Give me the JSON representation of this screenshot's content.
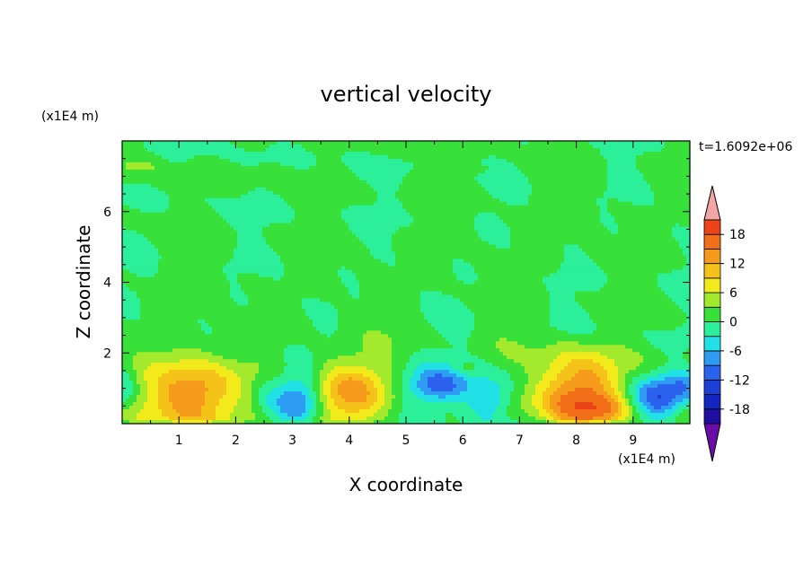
{
  "chart_data": {
    "type": "heatmap",
    "title": "vertical velocity",
    "xlabel": "X coordinate",
    "ylabel": "Z coordinate",
    "x_unit": "(x1E4 m)",
    "y_unit": "(x1E4 m)",
    "time_label": "t=1.6092e+06",
    "xlim": [
      0,
      10
    ],
    "ylim": [
      0,
      8
    ],
    "x_ticks": [
      "1",
      "2",
      "3",
      "4",
      "5",
      "6",
      "7",
      "8",
      "9"
    ],
    "y_ticks": [
      "2",
      "4",
      "6"
    ],
    "colorbar": {
      "levels": [
        -21,
        -18,
        -15,
        -12,
        -9,
        -6,
        -3,
        0,
        3,
        6,
        9,
        12,
        15,
        18,
        21
      ],
      "tick_labels": [
        "18",
        "12",
        "6",
        "0",
        "-6",
        "-12",
        "-18"
      ],
      "colors": [
        "#6a0da8",
        "#1e0fa0",
        "#1426c0",
        "#1e3ed8",
        "#2a62ee",
        "#2e9cf2",
        "#21e0e6",
        "#2cef9a",
        "#38e03a",
        "#a4ea2c",
        "#f2ea1a",
        "#f5c21a",
        "#f59a1a",
        "#f26e18",
        "#ea4418",
        "#e02e2e",
        "#f4a6a6"
      ],
      "extend": "both"
    },
    "background_value": 0.5,
    "cells": [
      {
        "x": 1.25,
        "z": 0.8,
        "amp": 16,
        "sx": 0.55,
        "sz": 0.75
      },
      {
        "x": 3.95,
        "z": 0.8,
        "amp": 13,
        "sx": 0.5,
        "sz": 0.75
      },
      {
        "x": 8.05,
        "z": 0.85,
        "amp": 16,
        "sx": 0.55,
        "sz": 0.8
      },
      {
        "x": 8.6,
        "z": 0.4,
        "amp": 5,
        "sx": 0.3,
        "sz": 0.3
      },
      {
        "x": 3.1,
        "z": 0.7,
        "amp": -11,
        "sx": 0.3,
        "sz": 0.55
      },
      {
        "x": 5.55,
        "z": 1.05,
        "amp": -11,
        "sx": 0.45,
        "sz": 0.35
      },
      {
        "x": 6.45,
        "z": 0.65,
        "amp": -8,
        "sx": 0.25,
        "sz": 0.35
      },
      {
        "x": 9.4,
        "z": 0.7,
        "amp": -10,
        "sx": 0.3,
        "sz": 0.45
      },
      {
        "x": 9.9,
        "z": 1.1,
        "amp": -8,
        "sx": 0.25,
        "sz": 0.35
      },
      {
        "x": 0.05,
        "z": 1.0,
        "amp": -5,
        "sx": 0.15,
        "sz": 0.4
      },
      {
        "x": 2.55,
        "z": 0.9,
        "amp": -3,
        "sx": 0.2,
        "sz": 0.4
      },
      {
        "x": 6.05,
        "z": 1.55,
        "amp": 3,
        "sx": 0.15,
        "sz": 0.15
      },
      {
        "x": 0.3,
        "z": 7.3,
        "amp": 3,
        "sx": 0.2,
        "sz": 0.1
      },
      {
        "x": 6.2,
        "z": 7.2,
        "amp": 3,
        "sx": 0.15,
        "sz": 0.08
      }
    ]
  }
}
